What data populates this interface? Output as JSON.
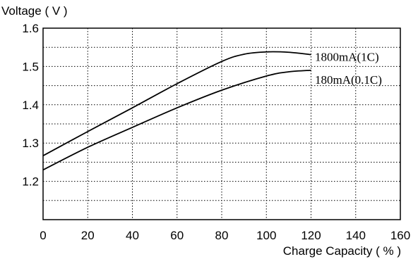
{
  "chart_data": {
    "type": "line",
    "title": "",
    "ylabel": "Voltage ( V )",
    "xlabel": "Charge  Capacity ( % )",
    "xlim": [
      0,
      160
    ],
    "ylim": [
      1.1,
      1.6
    ],
    "x_ticks": [
      0,
      20,
      40,
      60,
      80,
      100,
      120,
      140,
      160
    ],
    "x_tick_labels": [
      "0",
      "20",
      "40",
      "60",
      "80",
      "100",
      "120",
      "140",
      "160"
    ],
    "y_ticks": [
      1.2,
      1.3,
      1.4,
      1.5,
      1.6
    ],
    "y_tick_labels": [
      "1.2",
      "1.3",
      "1.4",
      "1.5",
      "1.6"
    ],
    "grid": true,
    "series": [
      {
        "name": "1800mA(1C)",
        "color": "#000000",
        "x": [
          0,
          20,
          40,
          60,
          80,
          90,
          100,
          110,
          120
        ],
        "y": [
          1.267,
          1.33,
          1.392,
          1.455,
          1.513,
          1.532,
          1.538,
          1.537,
          1.531
        ]
      },
      {
        "name": "180mA(0.1C)",
        "color": "#000000",
        "x": [
          0,
          20,
          40,
          60,
          80,
          100,
          110,
          120
        ],
        "y": [
          1.23,
          1.289,
          1.341,
          1.392,
          1.438,
          1.475,
          1.486,
          1.49
        ]
      }
    ]
  }
}
